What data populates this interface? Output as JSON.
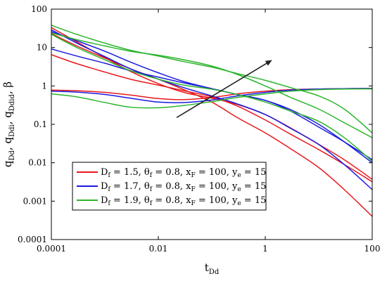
{
  "chart_data": {
    "type": "line",
    "x_scale": "log",
    "y_scale": "log",
    "xlim": [
      0.0001,
      100
    ],
    "ylim": [
      0.0001,
      100
    ],
    "x_ticks": [
      {
        "value": 0.0001,
        "label": "0.0001"
      },
      {
        "value": 0.01,
        "label": "0.01"
      },
      {
        "value": 1,
        "label": "1"
      },
      {
        "value": 100,
        "label": "100"
      }
    ],
    "y_ticks": [
      {
        "value": 0.0001,
        "label": "0.0001"
      },
      {
        "value": 0.001,
        "label": "0.001"
      },
      {
        "value": 0.01,
        "label": "0.01"
      },
      {
        "value": 0.1,
        "label": "0.1"
      },
      {
        "value": 1,
        "label": "1"
      },
      {
        "value": 10,
        "label": "10"
      },
      {
        "value": 100,
        "label": "100"
      }
    ],
    "xlabel": {
      "base": "t",
      "sub": "Dd"
    },
    "ylabel": [
      {
        "base": "q",
        "sub": "Dd"
      },
      {
        "base": ", q",
        "sub": "Ddi"
      },
      {
        "base": ", q",
        "sub": "Ddid"
      },
      {
        "base": ", β",
        "sub": ""
      }
    ],
    "grid": false,
    "legend_position": "lower-left",
    "arrow": {
      "from": [
        0.022,
        0.15
      ],
      "to": [
        1.3,
        4.6
      ]
    },
    "legend": [
      {
        "color": "#e8181c",
        "parts": [
          {
            "t": "D",
            "s": "f"
          },
          {
            "t": " = 1.5, θ",
            "s": "f"
          },
          {
            "t": " = 0.8, x",
            "s": "F"
          },
          {
            "t": " = 100, y",
            "s": "e"
          },
          {
            "t": " = 15",
            "s": ""
          }
        ]
      },
      {
        "color": "#1a1adf",
        "parts": [
          {
            "t": "D",
            "s": "f"
          },
          {
            "t": " = 1.7, θ",
            "s": "f"
          },
          {
            "t": " = 0.8, x",
            "s": "F"
          },
          {
            "t": " = 100, y",
            "s": "e"
          },
          {
            "t": " = 15",
            "s": ""
          }
        ]
      },
      {
        "color": "#2bb52b",
        "parts": [
          {
            "t": "D",
            "s": "f"
          },
          {
            "t": " = 1.9, θ",
            "s": "f"
          },
          {
            "t": " = 0.8, x",
            "s": "F"
          },
          {
            "t": " = 100, y",
            "s": "e"
          },
          {
            "t": " = 15",
            "s": ""
          }
        ]
      }
    ],
    "series": [
      {
        "group": 0,
        "color": "#e8181c",
        "points": [
          [
            0.0001,
            23
          ],
          [
            0.0003,
            11
          ],
          [
            0.001,
            5.3
          ],
          [
            0.003,
            2.8
          ],
          [
            0.01,
            1.5
          ],
          [
            0.03,
            0.8
          ],
          [
            0.1,
            0.38
          ],
          [
            0.3,
            0.15
          ],
          [
            1,
            0.06
          ],
          [
            3,
            0.023
          ],
          [
            10,
            0.0075
          ],
          [
            30,
            0.002
          ],
          [
            100,
            0.0004
          ]
        ]
      },
      {
        "group": 0,
        "color": "#e8181c",
        "points": [
          [
            0.0001,
            6.5
          ],
          [
            0.0003,
            3.8
          ],
          [
            0.001,
            2.3
          ],
          [
            0.003,
            1.5
          ],
          [
            0.01,
            1.05
          ],
          [
            0.03,
            0.75
          ],
          [
            0.1,
            0.52
          ],
          [
            0.3,
            0.3
          ],
          [
            1,
            0.13
          ],
          [
            3,
            0.055
          ],
          [
            10,
            0.022
          ],
          [
            30,
            0.009
          ],
          [
            100,
            0.0032
          ]
        ]
      },
      {
        "group": 0,
        "color": "#e8181c",
        "points": [
          [
            0.0001,
            33
          ],
          [
            0.0003,
            14
          ],
          [
            0.001,
            5.5
          ],
          [
            0.003,
            2.4
          ],
          [
            0.01,
            1.15
          ],
          [
            0.03,
            0.68
          ],
          [
            0.1,
            0.48
          ],
          [
            0.3,
            0.33
          ],
          [
            1,
            0.18
          ],
          [
            3,
            0.08
          ],
          [
            10,
            0.03
          ],
          [
            30,
            0.012
          ],
          [
            100,
            0.0037
          ]
        ]
      },
      {
        "group": 0,
        "color": "#e8181c",
        "points": [
          [
            0.0001,
            0.78
          ],
          [
            0.0003,
            0.75
          ],
          [
            0.001,
            0.68
          ],
          [
            0.003,
            0.58
          ],
          [
            0.01,
            0.47
          ],
          [
            0.03,
            0.44
          ],
          [
            0.1,
            0.5
          ],
          [
            0.3,
            0.62
          ],
          [
            1,
            0.73
          ],
          [
            3,
            0.8
          ],
          [
            10,
            0.83
          ],
          [
            30,
            0.85
          ],
          [
            100,
            0.86
          ]
        ]
      },
      {
        "group": 1,
        "color": "#1a1adf",
        "points": [
          [
            0.0001,
            29
          ],
          [
            0.0003,
            13
          ],
          [
            0.001,
            5.8
          ],
          [
            0.003,
            2.8
          ],
          [
            0.01,
            1.5
          ],
          [
            0.03,
            0.9
          ],
          [
            0.1,
            0.55
          ],
          [
            0.3,
            0.34
          ],
          [
            1,
            0.18
          ],
          [
            3,
            0.078
          ],
          [
            10,
            0.03
          ],
          [
            30,
            0.009
          ],
          [
            100,
            0.002
          ]
        ]
      },
      {
        "group": 1,
        "color": "#1a1adf",
        "points": [
          [
            0.0001,
            9.2
          ],
          [
            0.0003,
            6
          ],
          [
            0.001,
            3.9
          ],
          [
            0.003,
            2.5
          ],
          [
            0.01,
            1.7
          ],
          [
            0.03,
            1.2
          ],
          [
            0.1,
            0.85
          ],
          [
            0.3,
            0.6
          ],
          [
            1,
            0.42
          ],
          [
            3,
            0.22
          ],
          [
            10,
            0.085
          ],
          [
            30,
            0.035
          ],
          [
            100,
            0.012
          ]
        ]
      },
      {
        "group": 1,
        "color": "#1a1adf",
        "points": [
          [
            0.0001,
            26
          ],
          [
            0.0003,
            15
          ],
          [
            0.001,
            8
          ],
          [
            0.003,
            4.2
          ],
          [
            0.01,
            2.2
          ],
          [
            0.03,
            1.3
          ],
          [
            0.1,
            0.85
          ],
          [
            0.3,
            0.6
          ],
          [
            1,
            0.42
          ],
          [
            3,
            0.24
          ],
          [
            10,
            0.1
          ],
          [
            30,
            0.035
          ],
          [
            100,
            0.01
          ]
        ]
      },
      {
        "group": 1,
        "color": "#1a1adf",
        "points": [
          [
            0.0001,
            0.73
          ],
          [
            0.0003,
            0.69
          ],
          [
            0.001,
            0.6
          ],
          [
            0.003,
            0.48
          ],
          [
            0.01,
            0.38
          ],
          [
            0.03,
            0.37
          ],
          [
            0.1,
            0.43
          ],
          [
            0.3,
            0.55
          ],
          [
            1,
            0.68
          ],
          [
            3,
            0.78
          ],
          [
            10,
            0.83
          ],
          [
            30,
            0.85
          ],
          [
            100,
            0.86
          ]
        ]
      },
      {
        "group": 2,
        "color": "#2bb52b",
        "points": [
          [
            0.0001,
            38
          ],
          [
            0.0003,
            22
          ],
          [
            0.001,
            13
          ],
          [
            0.003,
            8.5
          ],
          [
            0.01,
            6
          ],
          [
            0.03,
            4.3
          ],
          [
            0.1,
            3.1
          ],
          [
            0.3,
            2.1
          ],
          [
            1,
            1.4
          ],
          [
            3,
            0.9
          ],
          [
            10,
            0.55
          ],
          [
            30,
            0.25
          ],
          [
            100,
            0.06
          ]
        ]
      },
      {
        "group": 2,
        "color": "#2bb52b",
        "points": [
          [
            0.0001,
            24
          ],
          [
            0.0003,
            16
          ],
          [
            0.001,
            11
          ],
          [
            0.003,
            8
          ],
          [
            0.01,
            6.3
          ],
          [
            0.03,
            4.8
          ],
          [
            0.1,
            3.3
          ],
          [
            0.3,
            2
          ],
          [
            1,
            1
          ],
          [
            3,
            0.5
          ],
          [
            10,
            0.25
          ],
          [
            30,
            0.11
          ],
          [
            100,
            0.045
          ]
        ]
      },
      {
        "group": 2,
        "color": "#2bb52b",
        "points": [
          [
            0.0001,
            22
          ],
          [
            0.0003,
            10
          ],
          [
            0.001,
            4.8
          ],
          [
            0.003,
            2.5
          ],
          [
            0.01,
            1.5
          ],
          [
            0.03,
            1.05
          ],
          [
            0.1,
            0.82
          ],
          [
            0.3,
            0.6
          ],
          [
            1,
            0.38
          ],
          [
            3,
            0.22
          ],
          [
            10,
            0.12
          ],
          [
            30,
            0.045
          ],
          [
            100,
            0.011
          ]
        ]
      },
      {
        "group": 2,
        "color": "#2bb52b",
        "points": [
          [
            0.0001,
            0.62
          ],
          [
            0.0003,
            0.52
          ],
          [
            0.001,
            0.37
          ],
          [
            0.003,
            0.28
          ],
          [
            0.01,
            0.27
          ],
          [
            0.03,
            0.31
          ],
          [
            0.1,
            0.39
          ],
          [
            0.3,
            0.5
          ],
          [
            1,
            0.62
          ],
          [
            3,
            0.73
          ],
          [
            10,
            0.8
          ],
          [
            30,
            0.83
          ],
          [
            100,
            0.84
          ]
        ]
      }
    ]
  }
}
